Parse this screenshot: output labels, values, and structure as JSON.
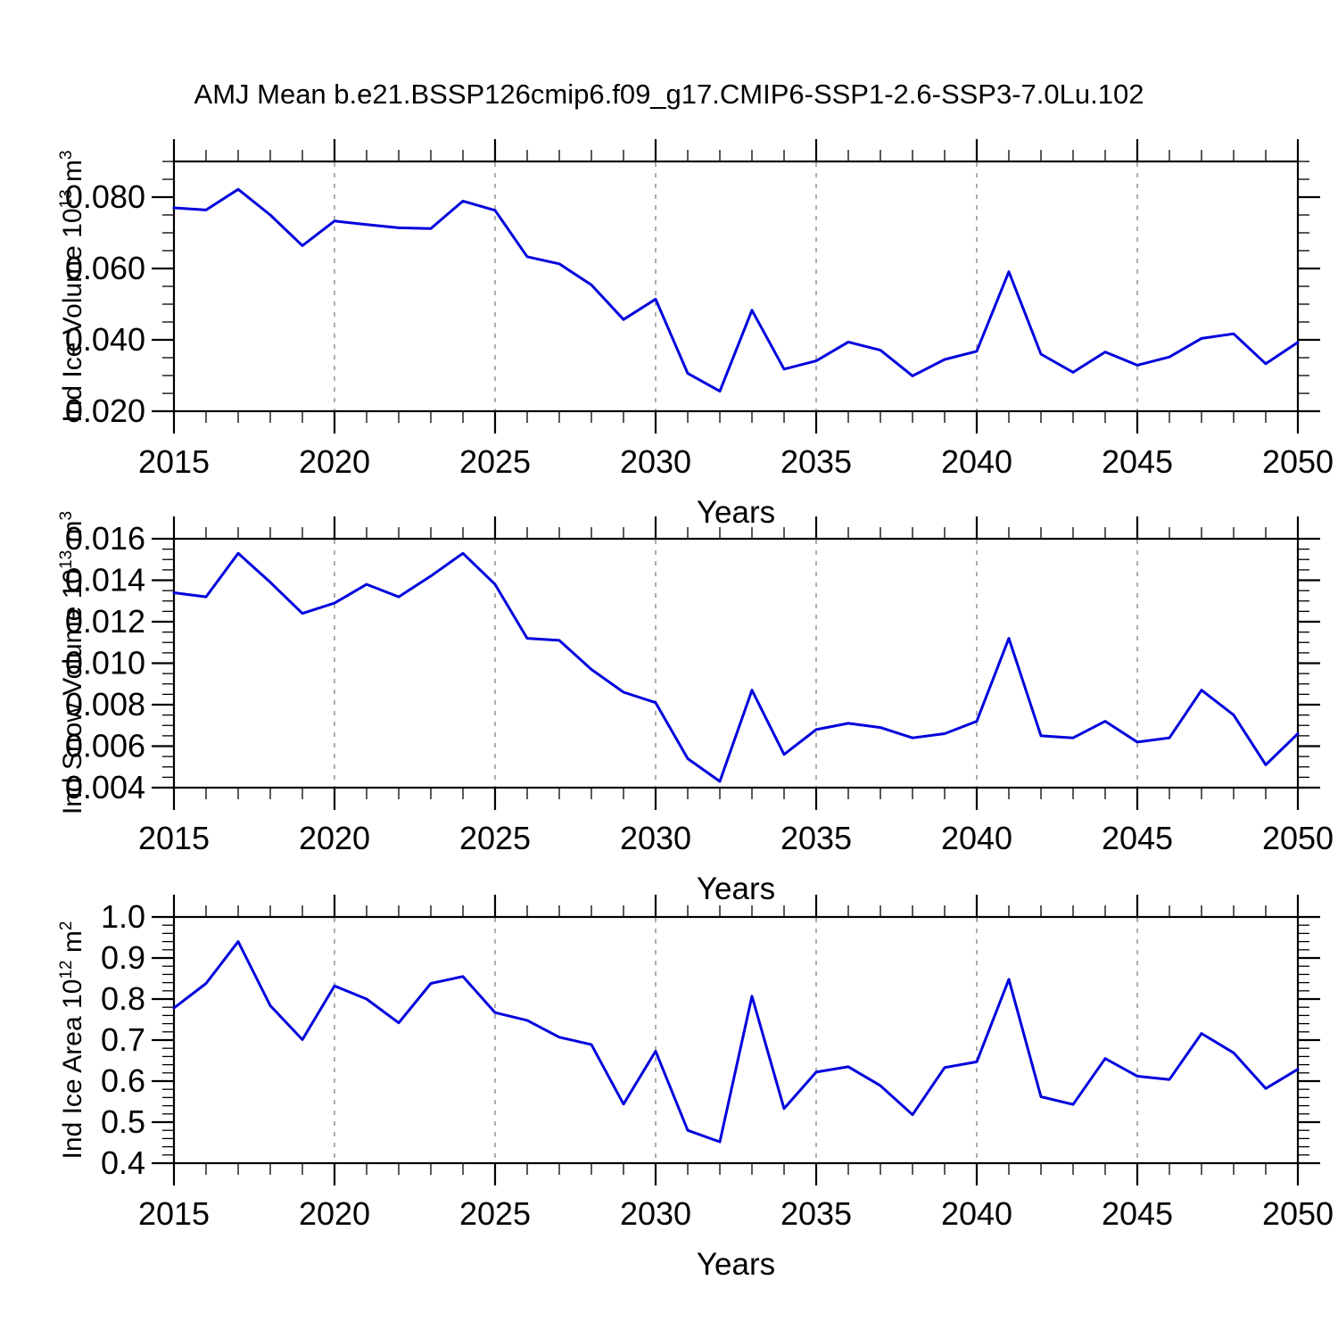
{
  "title": "AMJ Mean b.e21.BSSP126cmip6.f09_g17.CMIP6-SSP1-2.6-SSP3-7.0Lu.102",
  "colors": {
    "line": "#0000dd",
    "grid": "#999999",
    "axis": "#000000"
  },
  "years": [
    2015,
    2016,
    2017,
    2018,
    2019,
    2020,
    2021,
    2022,
    2023,
    2024,
    2025,
    2026,
    2027,
    2028,
    2029,
    2030,
    2031,
    2032,
    2033,
    2034,
    2035,
    2036,
    2037,
    2038,
    2039,
    2040,
    2041,
    2042,
    2043,
    2044,
    2045,
    2046,
    2047,
    2048,
    2049,
    2050
  ],
  "xticks": [
    {
      "v": 2015,
      "label": "2015"
    },
    {
      "v": 2020,
      "label": "2020"
    },
    {
      "v": 2025,
      "label": "2025"
    },
    {
      "v": 2030,
      "label": "2030"
    },
    {
      "v": 2035,
      "label": "2035"
    },
    {
      "v": 2040,
      "label": "2040"
    },
    {
      "v": 2045,
      "label": "2045"
    },
    {
      "v": 2050,
      "label": "2050"
    }
  ],
  "grid_years": [
    2020,
    2025,
    2030,
    2035,
    2040,
    2045
  ],
  "xminor_step": 1,
  "xlim": [
    2015,
    2050
  ],
  "chart_data": [
    {
      "type": "line",
      "name": "ind-ice-volume",
      "xlabel": "Years",
      "ylabel": {
        "prefix": "Ind Ice Volume 10",
        "sup1": "13",
        "unit": " m",
        "sup2": "3"
      },
      "ylim": [
        0.02,
        0.09
      ],
      "yminor_step": 0.005,
      "yticks": [
        {
          "v": 0.08,
          "label": "0.080"
        },
        {
          "v": 0.06,
          "label": "0.060"
        },
        {
          "v": 0.04,
          "label": "0.040"
        },
        {
          "v": 0.02,
          "label": "0.020"
        }
      ],
      "values": [
        0.077,
        0.0764,
        0.0822,
        0.075,
        0.0664,
        0.0733,
        0.0723,
        0.0714,
        0.0712,
        0.0789,
        0.0763,
        0.0633,
        0.0613,
        0.0554,
        0.0457,
        0.0514,
        0.0306,
        0.0256,
        0.0483,
        0.0318,
        0.0341,
        0.0394,
        0.0371,
        0.0299,
        0.0345,
        0.0368,
        0.0591,
        0.036,
        0.0309,
        0.0366,
        0.0329,
        0.0352,
        0.0404,
        0.0417,
        0.0333,
        0.0393
      ]
    },
    {
      "type": "line",
      "name": "ind-snow-volume",
      "xlabel": "Years",
      "ylabel": {
        "prefix": "Ind Snow Volume 10",
        "sup1": "13",
        "unit": " m",
        "sup2": "3"
      },
      "ylim": [
        0.004,
        0.016
      ],
      "yminor_step": 0.0005,
      "yticks": [
        {
          "v": 0.016,
          "label": "0.016"
        },
        {
          "v": 0.014,
          "label": "0.014"
        },
        {
          "v": 0.012,
          "label": "0.012"
        },
        {
          "v": 0.01,
          "label": "0.010"
        },
        {
          "v": 0.008,
          "label": "0.008"
        },
        {
          "v": 0.006,
          "label": "0.006"
        },
        {
          "v": 0.004,
          "label": "0.004"
        }
      ],
      "values": [
        0.0134,
        0.0132,
        0.0153,
        0.0139,
        0.0124,
        0.0129,
        0.0138,
        0.0132,
        0.0142,
        0.0153,
        0.0138,
        0.0112,
        0.0111,
        0.0097,
        0.0086,
        0.0081,
        0.0054,
        0.0043,
        0.0087,
        0.0056,
        0.0068,
        0.0071,
        0.0069,
        0.0064,
        0.0066,
        0.0072,
        0.0112,
        0.0065,
        0.0064,
        0.0072,
        0.0062,
        0.0064,
        0.0087,
        0.0075,
        0.0051,
        0.0066
      ]
    },
    {
      "type": "line",
      "name": "ind-ice-area",
      "xlabel": "Years",
      "ylabel": {
        "prefix": "Ind Ice Area 10",
        "sup1": "12",
        "unit": " m",
        "sup2": "2"
      },
      "ylim": [
        0.4,
        1.0
      ],
      "yminor_step": 0.02,
      "yticks": [
        {
          "v": 1.0,
          "label": "1.0"
        },
        {
          "v": 0.9,
          "label": "0.9"
        },
        {
          "v": 0.8,
          "label": "0.8"
        },
        {
          "v": 0.7,
          "label": "0.7"
        },
        {
          "v": 0.6,
          "label": "0.6"
        },
        {
          "v": 0.5,
          "label": "0.5"
        },
        {
          "v": 0.4,
          "label": "0.4"
        }
      ],
      "values": [
        0.778,
        0.838,
        0.94,
        0.784,
        0.701,
        0.832,
        0.8,
        0.742,
        0.838,
        0.855,
        0.767,
        0.748,
        0.707,
        0.689,
        0.544,
        0.673,
        0.48,
        0.452,
        0.807,
        0.533,
        0.622,
        0.635,
        0.589,
        0.518,
        0.633,
        0.647,
        0.848,
        0.562,
        0.543,
        0.655,
        0.612,
        0.604,
        0.716,
        0.669,
        0.582,
        0.629
      ]
    }
  ]
}
